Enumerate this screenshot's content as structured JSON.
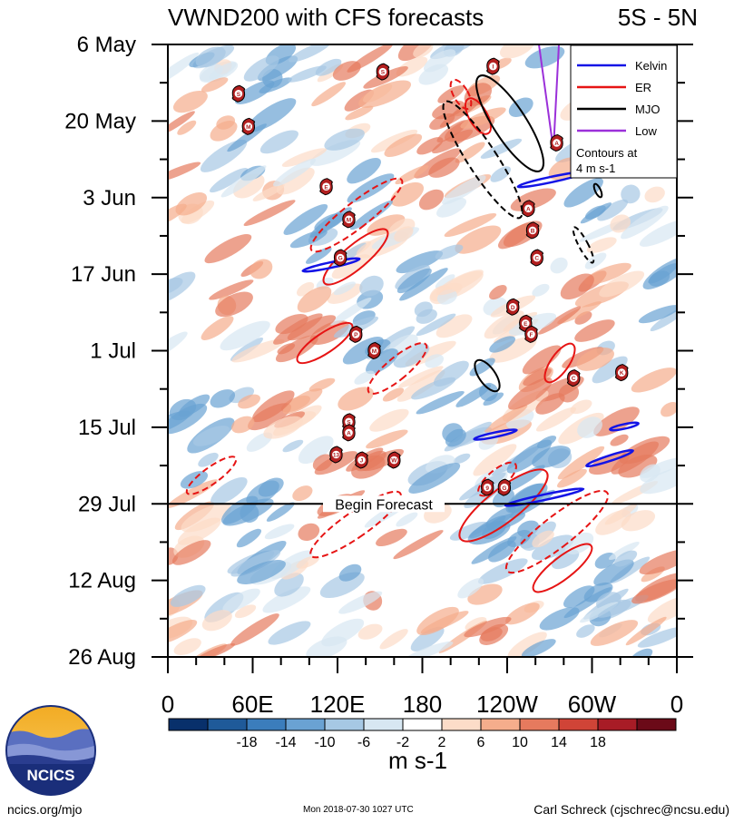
{
  "header": {
    "title": "VWND200 with CFS forecasts",
    "lat_range": "5S - 5N"
  },
  "footer": {
    "url": "ncics.org/mjo",
    "timestamp": "Mon 2018-07-30 1027 UTC",
    "author": "Carl Schreck (cjschrec@ncsu.edu)",
    "logo_text": "NCICS"
  },
  "chart_data": {
    "type": "heatmap",
    "title": "VWND200 with CFS forecasts",
    "subtitle": "5S - 5N",
    "x_ticks": [
      "0",
      "60E",
      "120E",
      "180",
      "120W",
      "60W",
      "0"
    ],
    "x_tick_lon": [
      0,
      60,
      120,
      180,
      240,
      300,
      360
    ],
    "y_ticks": [
      "6 May",
      "20 May",
      "3 Jun",
      "17 Jun",
      "1 Jul",
      "15 Jul",
      "29 Jul",
      "12 Aug",
      "26 Aug"
    ],
    "y_tick_day": [
      0,
      14,
      28,
      42,
      56,
      70,
      84,
      98,
      112
    ],
    "forecast_start_day": 84,
    "forecast_label": "Begin Forecast",
    "colorbar": {
      "units": "m s-1",
      "labels": [
        "-18",
        "-14",
        "-10",
        "-6",
        "-2",
        "2",
        "6",
        "10",
        "14",
        "18"
      ],
      "colors": [
        "#08306b",
        "#1f5a99",
        "#3b7dbc",
        "#6aa2d3",
        "#a6c8e4",
        "#d7e7f2",
        "#ffffff",
        "#fcdcc8",
        "#f5ad8c",
        "#e67a5e",
        "#d04437",
        "#a81c26",
        "#6b0a18"
      ]
    },
    "legend": {
      "position": "top-right",
      "items": [
        {
          "name": "Kelvin",
          "color": "#1414e6"
        },
        {
          "name": "ER",
          "color": "#e61414"
        },
        {
          "name": "MJO",
          "color": "#000000"
        },
        {
          "name": "Low",
          "color": "#9b30d9"
        }
      ],
      "note": "Contours at\n4 m s-1"
    },
    "storms": [
      {
        "letter": "I",
        "lon": 230,
        "day": 4
      },
      {
        "letter": "S",
        "lon": 152,
        "day": 5
      },
      {
        "letter": "S",
        "lon": 50,
        "day": 9
      },
      {
        "letter": "M",
        "lon": 57,
        "day": 15
      },
      {
        "letter": "A",
        "lon": 275,
        "day": 18
      },
      {
        "letter": "E",
        "lon": 112,
        "day": 26
      },
      {
        "letter": "A",
        "lon": 255,
        "day": 30
      },
      {
        "letter": "M",
        "lon": 128,
        "day": 32
      },
      {
        "letter": "B",
        "lon": 258,
        "day": 34
      },
      {
        "letter": "C",
        "lon": 261,
        "day": 39
      },
      {
        "letter": "G",
        "lon": 122,
        "day": 39
      },
      {
        "letter": "D",
        "lon": 244,
        "day": 48
      },
      {
        "letter": "E",
        "lon": 253,
        "day": 51
      },
      {
        "letter": "F",
        "lon": 257,
        "day": 53
      },
      {
        "letter": "P",
        "lon": 133,
        "day": 53
      },
      {
        "letter": "M",
        "lon": 146,
        "day": 56
      },
      {
        "letter": "C",
        "lon": 287,
        "day": 61
      },
      {
        "letter": "K",
        "lon": 321,
        "day": 60
      },
      {
        "letter": "S",
        "lon": 128,
        "day": 69
      },
      {
        "letter": "A",
        "lon": 128,
        "day": 71
      },
      {
        "letter": "13",
        "lon": 119,
        "day": 75
      },
      {
        "letter": "J",
        "lon": 137,
        "day": 76
      },
      {
        "letter": "W",
        "lon": 160,
        "day": 76
      },
      {
        "letter": "9",
        "lon": 226,
        "day": 81
      },
      {
        "letter": "G",
        "lon": 238,
        "day": 81
      }
    ]
  }
}
